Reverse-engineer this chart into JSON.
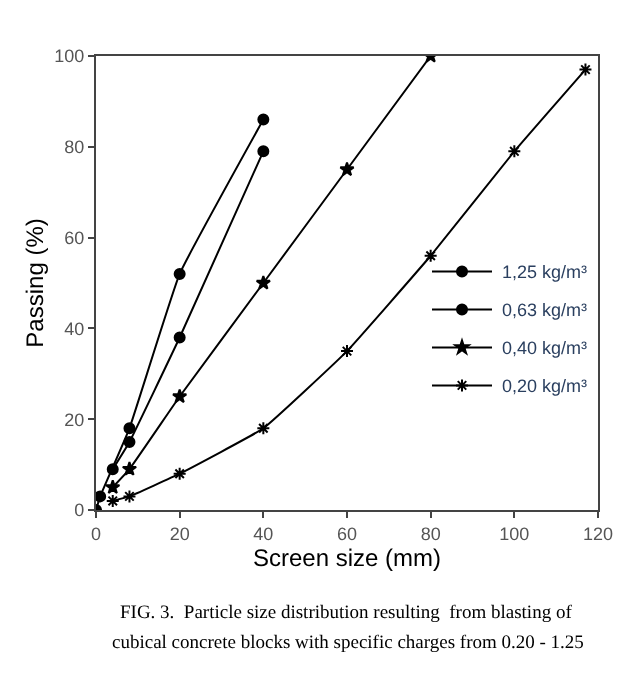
{
  "chart_data": {
    "type": "line",
    "xlabel": "Screen size (mm)",
    "ylabel": "Passing (%)",
    "xlim": [
      0,
      120
    ],
    "xticks": [
      0,
      20,
      40,
      60,
      80,
      100,
      120
    ],
    "ylim": [
      0,
      100
    ],
    "yticks": [
      0,
      20,
      40,
      60,
      80,
      100
    ],
    "legend": "right",
    "series": [
      {
        "name": "1,25 kg/m³",
        "color": "#000000",
        "marker": "circle",
        "x": [
          0,
          1,
          8,
          20,
          40
        ],
        "values": [
          0,
          3,
          18,
          52,
          86
        ]
      },
      {
        "name": "0,63 kg/m³",
        "color": "#000000",
        "marker": "circle",
        "x": [
          4,
          8,
          20,
          40
        ],
        "values": [
          9,
          15,
          38,
          79
        ]
      },
      {
        "name": "0,40 kg/m³",
        "color": "#000000",
        "marker": "star",
        "x": [
          4,
          8,
          20,
          40,
          60,
          80
        ],
        "values": [
          5,
          9,
          25,
          50,
          75,
          100
        ]
      },
      {
        "name": "0,20 kg/m³",
        "color": "#000000",
        "marker": "cross",
        "x": [
          4,
          8,
          20,
          40,
          60,
          80,
          100,
          117
        ],
        "values": [
          2,
          3,
          8,
          18,
          35,
          56,
          79,
          97
        ]
      }
    ],
    "annotations": [
      "FIG. 3.  Particle size distribution resulting  from blasting of",
      "cubical concrete blocks with specific charges from 0.20 - 1.25"
    ]
  }
}
